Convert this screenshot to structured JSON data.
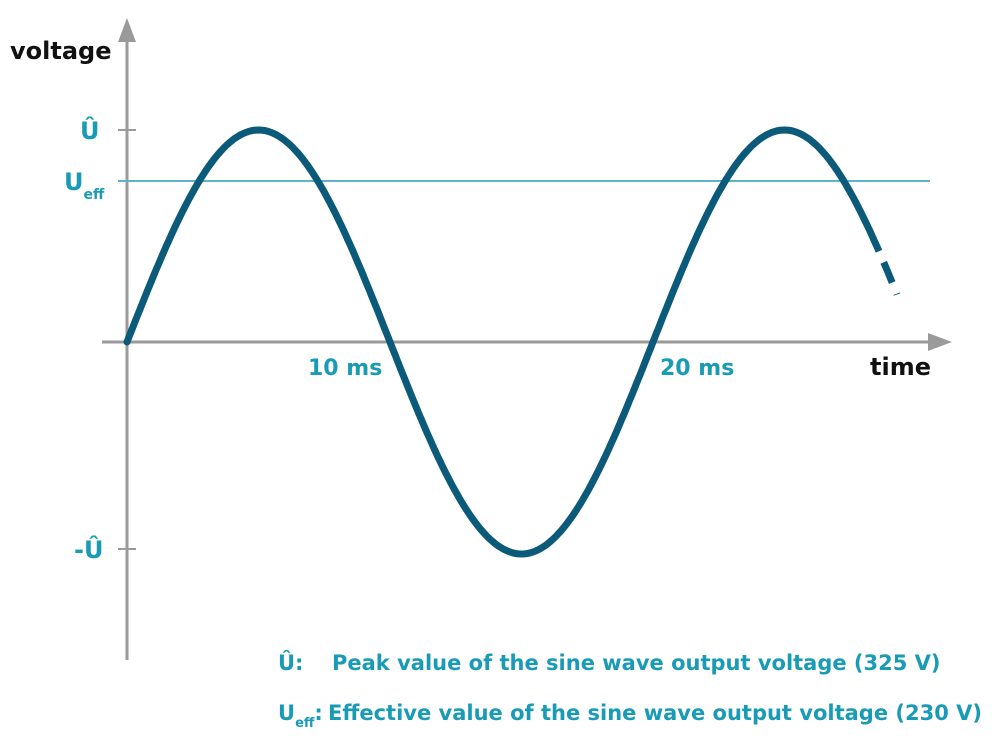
{
  "axis": {
    "y_label": "voltage",
    "x_label": "time"
  },
  "y_marks": {
    "peak": "Û",
    "effective": {
      "main": "U",
      "sub": "eff"
    },
    "negative_peak": "-Û"
  },
  "x_marks": [
    "10 ms",
    "20 ms"
  ],
  "legend": [
    {
      "symbol": {
        "main": "Û:"
      },
      "text": "Peak value of the sine wave output voltage (325 V)"
    },
    {
      "symbol": {
        "main": "U",
        "sub": "eff",
        "tail": ":"
      },
      "text": "Effective value of the sine wave output voltage (230 V)"
    }
  ]
}
